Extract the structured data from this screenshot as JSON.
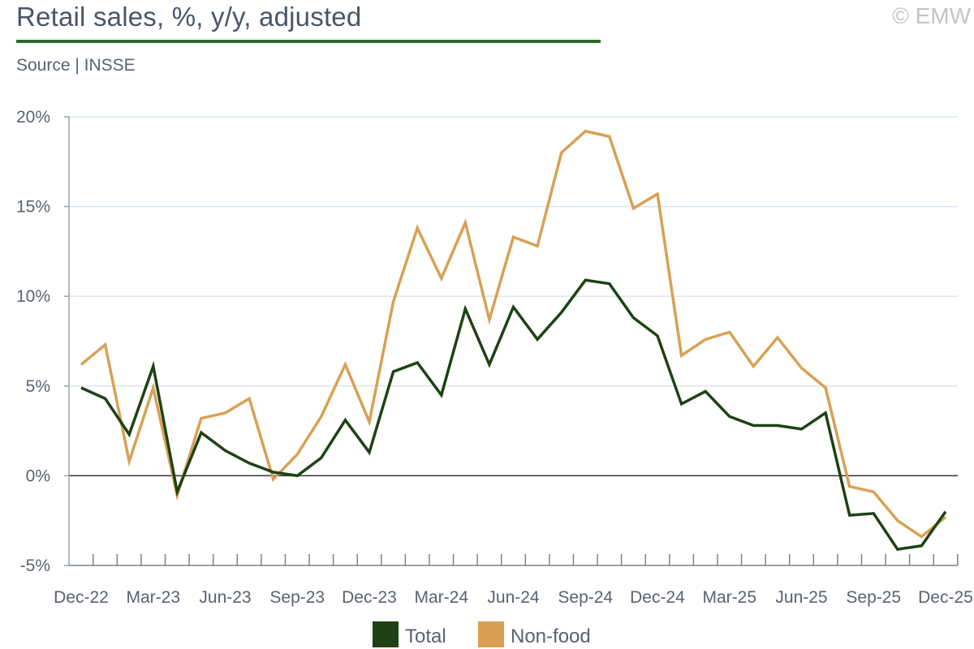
{
  "header": {
    "title": "Retail sales, %, y/y, adjusted",
    "source": "Source | INSSE",
    "copyright": "© EMW"
  },
  "chart_data": {
    "type": "line",
    "title": "Retail sales, %, y/y, adjusted",
    "xlabel": "",
    "ylabel": "",
    "ylim": [
      -5,
      20
    ],
    "yticks": [
      -5,
      0,
      5,
      10,
      15,
      20
    ],
    "ytick_labels": [
      "-5%",
      "0%",
      "5%",
      "10%",
      "15%",
      "20%"
    ],
    "x": [
      "Dec-22",
      "Jan-23",
      "Feb-23",
      "Mar-23",
      "Apr-23",
      "May-23",
      "Jun-23",
      "Jul-23",
      "Aug-23",
      "Sep-23",
      "Oct-23",
      "Nov-23",
      "Dec-23",
      "Jan-24",
      "Feb-24",
      "Mar-24",
      "Apr-24",
      "May-24",
      "Jun-24",
      "Jul-24",
      "Aug-24",
      "Sep-24",
      "Oct-24",
      "Nov-24",
      "Dec-24",
      "Jan-25",
      "Feb-25",
      "Mar-25",
      "Apr-25",
      "May-25",
      "Jun-25",
      "Jul-25",
      "Aug-25",
      "Sep-25",
      "Oct-25",
      "Nov-25",
      "Dec-25"
    ],
    "xtick_labels": [
      {
        "index": 0,
        "label": "Dec-22"
      },
      {
        "index": 3,
        "label": "Mar-23"
      },
      {
        "index": 6,
        "label": "Jun-23"
      },
      {
        "index": 9,
        "label": "Sep-23"
      },
      {
        "index": 12,
        "label": "Dec-23"
      },
      {
        "index": 15,
        "label": "Mar-24"
      },
      {
        "index": 18,
        "label": "Jun-24"
      },
      {
        "index": 21,
        "label": "Sep-24"
      },
      {
        "index": 24,
        "label": "Dec-24"
      },
      {
        "index": 27,
        "label": "Mar-25"
      },
      {
        "index": 30,
        "label": "Jun-25"
      },
      {
        "index": 33,
        "label": "Sep-25"
      },
      {
        "index": 36,
        "label": "Dec-25"
      }
    ],
    "series": [
      {
        "name": "Total",
        "color": "#1e4214",
        "values": [
          4.9,
          4.3,
          2.3,
          6.1,
          -0.9,
          2.4,
          1.4,
          0.7,
          0.2,
          0.0,
          1.0,
          3.1,
          1.3,
          5.8,
          6.3,
          4.5,
          9.3,
          6.2,
          9.4,
          7.6,
          9.1,
          10.9,
          10.7,
          8.8,
          7.8,
          4.0,
          4.7,
          3.3,
          2.8,
          2.8,
          2.6,
          3.5,
          -2.2,
          -2.1,
          -4.1,
          -3.9,
          -2.0
        ]
      },
      {
        "name": "Non-food",
        "color": "#d9a054",
        "values": [
          6.2,
          7.3,
          0.8,
          4.9,
          -1.1,
          3.2,
          3.5,
          4.3,
          -0.2,
          1.2,
          3.3,
          6.2,
          3.0,
          9.7,
          13.8,
          11.0,
          14.1,
          8.7,
          13.3,
          12.8,
          18.0,
          19.2,
          18.9,
          14.9,
          15.7,
          6.7,
          7.6,
          8.0,
          6.1,
          7.7,
          6.0,
          4.9,
          -0.6,
          -0.9,
          -2.5,
          -3.4,
          -2.3
        ]
      }
    ],
    "legend": {
      "placement": "bottom-center",
      "entries": [
        "Total",
        "Non-food"
      ]
    },
    "grid": true
  }
}
